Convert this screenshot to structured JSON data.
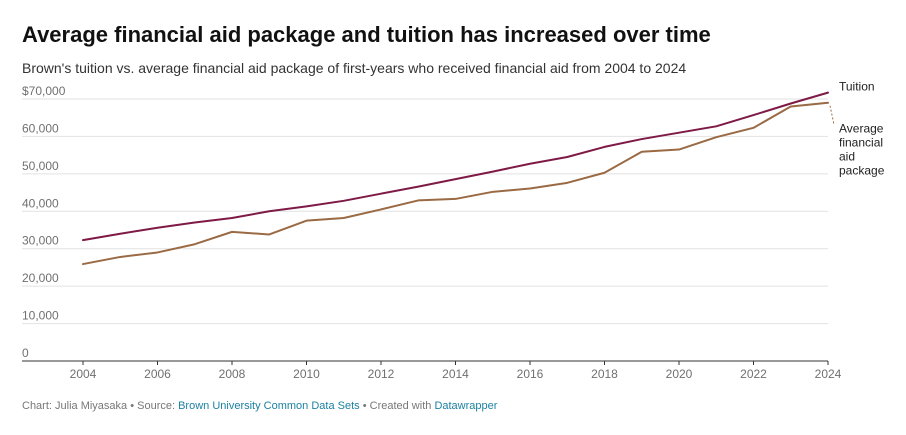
{
  "title": "Average financial aid package and tuition has increased over time",
  "subtitle": "Brown's tuition vs. average financial aid package of first-years who received financial aid from 2004 to 2024",
  "footer": {
    "chart_by": "Chart: Julia Miyasaka",
    "sep1": " • Source: ",
    "source": "Brown University Common Data Sets",
    "sep2": " • Created with ",
    "tool": "Datawrapper"
  },
  "chart_data": {
    "type": "line",
    "xlim": [
      2004,
      2024
    ],
    "ylim": [
      0,
      70000
    ],
    "x_ticks": [
      "2004",
      "2006",
      "2008",
      "2010",
      "2012",
      "2014",
      "2016",
      "2018",
      "2020",
      "2022",
      "2024"
    ],
    "y_ticks": [
      {
        "value": 0,
        "label": "0"
      },
      {
        "value": 10000,
        "label": "10,000"
      },
      {
        "value": 20000,
        "label": "20,000"
      },
      {
        "value": 30000,
        "label": "30,000"
      },
      {
        "value": 40000,
        "label": "40,000"
      },
      {
        "value": 50000,
        "label": "50,000"
      },
      {
        "value": 60000,
        "label": "60,000"
      },
      {
        "value": 70000,
        "label": "$70,000"
      }
    ],
    "grid": true,
    "x": [
      2004,
      2005,
      2006,
      2007,
      2008,
      2009,
      2010,
      2011,
      2012,
      2013,
      2014,
      2015,
      2016,
      2017,
      2018,
      2019,
      2020,
      2021,
      2022,
      2023,
      2024
    ],
    "series": [
      {
        "name": "Tuition",
        "color": "#7e1a45",
        "label_lines": [
          "Tuition"
        ],
        "values": [
          32300,
          34000,
          35600,
          37000,
          38200,
          40000,
          41300,
          42800,
          44700,
          46600,
          48600,
          50600,
          52700,
          54500,
          57200,
          59300,
          61000,
          62700,
          65700,
          68800,
          71700
        ]
      },
      {
        "name": "Average financial aid package",
        "color": "#9a6a44",
        "label_lines": [
          "Average",
          "financial",
          "aid",
          "package"
        ],
        "values": [
          25900,
          27800,
          29000,
          31200,
          34500,
          33800,
          37500,
          38200,
          40500,
          42900,
          43300,
          45200,
          46100,
          47600,
          50300,
          55900,
          56500,
          59800,
          62300,
          68000,
          69000
        ]
      }
    ]
  }
}
